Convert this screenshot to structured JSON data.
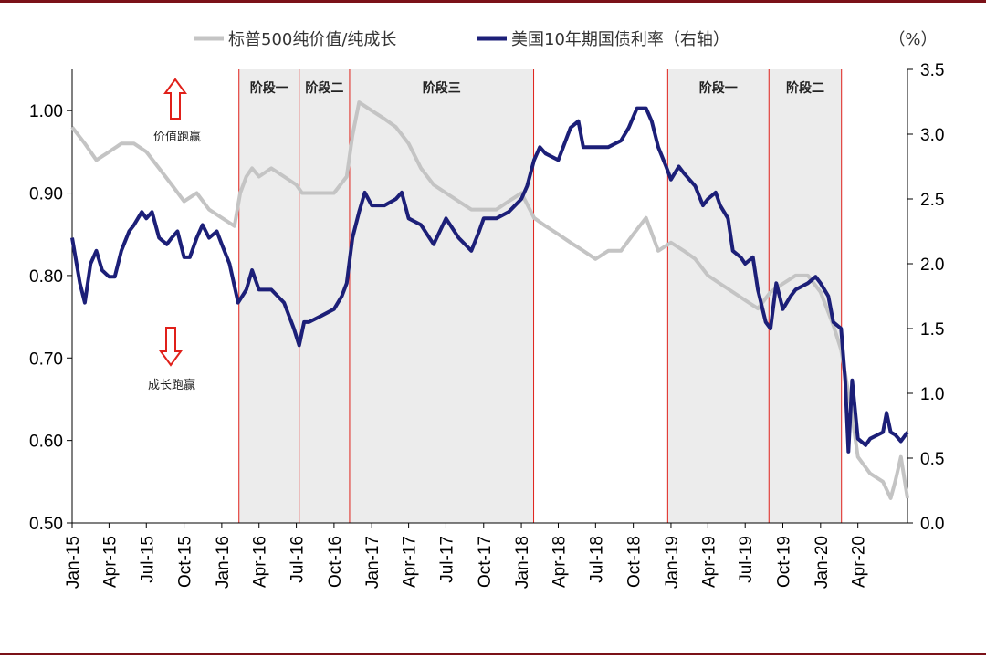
{
  "chart_data": {
    "type": "line",
    "title": "",
    "unit_label": "（%）",
    "legend_placement": "top-center",
    "grid": false,
    "x_ticks": [
      "Jan-15",
      "Apr-15",
      "Jul-15",
      "Oct-15",
      "Jan-16",
      "Apr-16",
      "Jul-16",
      "Oct-16",
      "Jan-17",
      "Apr-17",
      "Jul-17",
      "Oct-17",
      "Jan-18",
      "Apr-18",
      "Jul-18",
      "Oct-18",
      "Jan-19",
      "Apr-19",
      "Jul-19",
      "Oct-19",
      "Jan-20",
      "Apr-20"
    ],
    "x_range": [
      "2015-01-01",
      "2020-07-31"
    ],
    "y_left": {
      "range": [
        0.5,
        1.05
      ],
      "ticks": [
        "0.50",
        "0.60",
        "0.70",
        "0.80",
        "0.90",
        "1.00"
      ]
    },
    "y_right": {
      "range": [
        0,
        3.5
      ],
      "ticks": [
        "0.0",
        "0.5",
        "1.0",
        "1.5",
        "2.0",
        "2.5",
        "3.0",
        "3.5"
      ]
    },
    "series": [
      {
        "name": "标普500纯价值/纯成长",
        "axis": "left",
        "color": "#c4c4c4",
        "points": [
          [
            "2015-01-01",
            0.98
          ],
          [
            "2015-02-01",
            0.96
          ],
          [
            "2015-03-01",
            0.94
          ],
          [
            "2015-04-01",
            0.95
          ],
          [
            "2015-05-01",
            0.96
          ],
          [
            "2015-06-01",
            0.96
          ],
          [
            "2015-07-01",
            0.95
          ],
          [
            "2015-08-01",
            0.93
          ],
          [
            "2015-09-01",
            0.91
          ],
          [
            "2015-10-01",
            0.89
          ],
          [
            "2015-11-01",
            0.9
          ],
          [
            "2015-12-01",
            0.88
          ],
          [
            "2016-01-01",
            0.87
          ],
          [
            "2016-02-01",
            0.86
          ],
          [
            "2016-02-15",
            0.9
          ],
          [
            "2016-03-01",
            0.92
          ],
          [
            "2016-03-15",
            0.93
          ],
          [
            "2016-04-01",
            0.92
          ],
          [
            "2016-05-01",
            0.93
          ],
          [
            "2016-06-01",
            0.92
          ],
          [
            "2016-07-01",
            0.91
          ],
          [
            "2016-07-15",
            0.9
          ],
          [
            "2016-08-01",
            0.9
          ],
          [
            "2016-09-01",
            0.9
          ],
          [
            "2016-10-01",
            0.9
          ],
          [
            "2016-11-01",
            0.92
          ],
          [
            "2016-11-15",
            0.97
          ],
          [
            "2016-12-01",
            1.01
          ],
          [
            "2017-01-01",
            1.0
          ],
          [
            "2017-02-01",
            0.99
          ],
          [
            "2017-03-01",
            0.98
          ],
          [
            "2017-04-01",
            0.96
          ],
          [
            "2017-05-01",
            0.93
          ],
          [
            "2017-06-01",
            0.91
          ],
          [
            "2017-07-01",
            0.9
          ],
          [
            "2017-08-01",
            0.89
          ],
          [
            "2017-09-01",
            0.88
          ],
          [
            "2017-10-01",
            0.88
          ],
          [
            "2017-11-01",
            0.88
          ],
          [
            "2017-12-01",
            0.89
          ],
          [
            "2018-01-01",
            0.9
          ],
          [
            "2018-02-01",
            0.87
          ],
          [
            "2018-03-01",
            0.86
          ],
          [
            "2018-04-01",
            0.85
          ],
          [
            "2018-05-01",
            0.84
          ],
          [
            "2018-06-01",
            0.83
          ],
          [
            "2018-07-01",
            0.82
          ],
          [
            "2018-08-01",
            0.83
          ],
          [
            "2018-09-01",
            0.83
          ],
          [
            "2018-10-01",
            0.85
          ],
          [
            "2018-11-01",
            0.87
          ],
          [
            "2018-12-01",
            0.83
          ],
          [
            "2019-01-01",
            0.84
          ],
          [
            "2019-02-01",
            0.83
          ],
          [
            "2019-03-01",
            0.82
          ],
          [
            "2019-04-01",
            0.8
          ],
          [
            "2019-05-01",
            0.79
          ],
          [
            "2019-06-01",
            0.78
          ],
          [
            "2019-07-01",
            0.77
          ],
          [
            "2019-08-01",
            0.76
          ],
          [
            "2019-09-01",
            0.78
          ],
          [
            "2019-10-01",
            0.79
          ],
          [
            "2019-11-01",
            0.8
          ],
          [
            "2019-12-01",
            0.8
          ],
          [
            "2020-01-01",
            0.78
          ],
          [
            "2020-02-01",
            0.74
          ],
          [
            "2020-02-20",
            0.71
          ],
          [
            "2020-03-15",
            0.64
          ],
          [
            "2020-04-01",
            0.58
          ],
          [
            "2020-05-01",
            0.56
          ],
          [
            "2020-06-01",
            0.55
          ],
          [
            "2020-06-20",
            0.53
          ],
          [
            "2020-07-01",
            0.55
          ],
          [
            "2020-07-15",
            0.58
          ],
          [
            "2020-07-31",
            0.53
          ]
        ]
      },
      {
        "name": "美国10年期国债利率（右轴）",
        "axis": "right",
        "color": "#1c1f78",
        "points": [
          [
            "2015-01-01",
            2.2
          ],
          [
            "2015-01-20",
            1.85
          ],
          [
            "2015-02-01",
            1.7
          ],
          [
            "2015-02-15",
            2.0
          ],
          [
            "2015-03-01",
            2.1
          ],
          [
            "2015-03-15",
            1.95
          ],
          [
            "2015-04-01",
            1.9
          ],
          [
            "2015-04-15",
            1.9
          ],
          [
            "2015-05-01",
            2.1
          ],
          [
            "2015-05-20",
            2.25
          ],
          [
            "2015-06-01",
            2.3
          ],
          [
            "2015-06-20",
            2.4
          ],
          [
            "2015-07-01",
            2.35
          ],
          [
            "2015-07-15",
            2.4
          ],
          [
            "2015-08-01",
            2.2
          ],
          [
            "2015-08-20",
            2.15
          ],
          [
            "2015-09-01",
            2.2
          ],
          [
            "2015-09-15",
            2.25
          ],
          [
            "2015-10-01",
            2.05
          ],
          [
            "2015-10-15",
            2.05
          ],
          [
            "2015-11-01",
            2.2
          ],
          [
            "2015-11-15",
            2.3
          ],
          [
            "2015-12-01",
            2.2
          ],
          [
            "2015-12-20",
            2.25
          ],
          [
            "2016-01-01",
            2.15
          ],
          [
            "2016-01-20",
            2.0
          ],
          [
            "2016-02-10",
            1.7
          ],
          [
            "2016-03-01",
            1.8
          ],
          [
            "2016-03-15",
            1.95
          ],
          [
            "2016-04-01",
            1.8
          ],
          [
            "2016-05-01",
            1.8
          ],
          [
            "2016-06-01",
            1.7
          ],
          [
            "2016-06-25",
            1.5
          ],
          [
            "2016-07-08",
            1.37
          ],
          [
            "2016-07-20",
            1.55
          ],
          [
            "2016-08-01",
            1.55
          ],
          [
            "2016-09-01",
            1.6
          ],
          [
            "2016-10-01",
            1.65
          ],
          [
            "2016-10-20",
            1.75
          ],
          [
            "2016-11-01",
            1.85
          ],
          [
            "2016-11-15",
            2.2
          ],
          [
            "2016-12-01",
            2.4
          ],
          [
            "2016-12-15",
            2.55
          ],
          [
            "2017-01-01",
            2.45
          ],
          [
            "2017-02-01",
            2.45
          ],
          [
            "2017-03-01",
            2.5
          ],
          [
            "2017-03-15",
            2.55
          ],
          [
            "2017-04-01",
            2.35
          ],
          [
            "2017-05-01",
            2.3
          ],
          [
            "2017-06-01",
            2.15
          ],
          [
            "2017-07-01",
            2.35
          ],
          [
            "2017-08-01",
            2.2
          ],
          [
            "2017-09-01",
            2.1
          ],
          [
            "2017-09-20",
            2.25
          ],
          [
            "2017-10-01",
            2.35
          ],
          [
            "2017-11-01",
            2.35
          ],
          [
            "2017-12-01",
            2.4
          ],
          [
            "2018-01-01",
            2.5
          ],
          [
            "2018-01-15",
            2.6
          ],
          [
            "2018-02-01",
            2.8
          ],
          [
            "2018-02-15",
            2.9
          ],
          [
            "2018-03-01",
            2.85
          ],
          [
            "2018-04-01",
            2.8
          ],
          [
            "2018-05-01",
            3.05
          ],
          [
            "2018-05-20",
            3.1
          ],
          [
            "2018-06-01",
            2.9
          ],
          [
            "2018-07-01",
            2.9
          ],
          [
            "2018-08-01",
            2.9
          ],
          [
            "2018-09-01",
            2.95
          ],
          [
            "2018-09-20",
            3.05
          ],
          [
            "2018-10-10",
            3.2
          ],
          [
            "2018-11-01",
            3.2
          ],
          [
            "2018-11-15",
            3.1
          ],
          [
            "2018-12-01",
            2.9
          ],
          [
            "2018-12-20",
            2.75
          ],
          [
            "2019-01-01",
            2.65
          ],
          [
            "2019-01-20",
            2.75
          ],
          [
            "2019-02-01",
            2.7
          ],
          [
            "2019-03-01",
            2.6
          ],
          [
            "2019-03-20",
            2.45
          ],
          [
            "2019-04-01",
            2.5
          ],
          [
            "2019-04-20",
            2.55
          ],
          [
            "2019-05-01",
            2.45
          ],
          [
            "2019-05-20",
            2.35
          ],
          [
            "2019-06-01",
            2.1
          ],
          [
            "2019-06-20",
            2.05
          ],
          [
            "2019-07-01",
            2.0
          ],
          [
            "2019-07-20",
            2.05
          ],
          [
            "2019-08-01",
            1.8
          ],
          [
            "2019-08-20",
            1.55
          ],
          [
            "2019-09-01",
            1.5
          ],
          [
            "2019-09-15",
            1.85
          ],
          [
            "2019-10-01",
            1.65
          ],
          [
            "2019-10-20",
            1.75
          ],
          [
            "2019-11-01",
            1.8
          ],
          [
            "2019-12-01",
            1.85
          ],
          [
            "2019-12-20",
            1.9
          ],
          [
            "2020-01-01",
            1.85
          ],
          [
            "2020-01-20",
            1.75
          ],
          [
            "2020-02-01",
            1.55
          ],
          [
            "2020-02-20",
            1.5
          ],
          [
            "2020-03-01",
            1.1
          ],
          [
            "2020-03-09",
            0.55
          ],
          [
            "2020-03-18",
            1.1
          ],
          [
            "2020-04-01",
            0.65
          ],
          [
            "2020-04-20",
            0.6
          ],
          [
            "2020-05-01",
            0.65
          ],
          [
            "2020-06-01",
            0.7
          ],
          [
            "2020-06-10",
            0.85
          ],
          [
            "2020-06-20",
            0.7
          ],
          [
            "2020-07-01",
            0.68
          ],
          [
            "2020-07-15",
            0.63
          ],
          [
            "2020-07-31",
            0.7
          ]
        ]
      }
    ],
    "phases": [
      {
        "label": "阶段一",
        "start": "2016-02-12",
        "end": "2016-07-08"
      },
      {
        "label": "阶段二",
        "start": "2016-07-08",
        "end": "2016-11-08"
      },
      {
        "label": "阶段三",
        "start": "2016-11-08",
        "end": "2018-01-31"
      },
      {
        "label": "阶段一",
        "start": "2018-12-24",
        "end": "2019-08-28"
      },
      {
        "label": "阶段二",
        "start": "2019-08-28",
        "end": "2020-02-21"
      }
    ],
    "annotations": [
      {
        "text": "价值跑赢",
        "arrow": "up"
      },
      {
        "text": "成长跑赢",
        "arrow": "down"
      }
    ]
  }
}
